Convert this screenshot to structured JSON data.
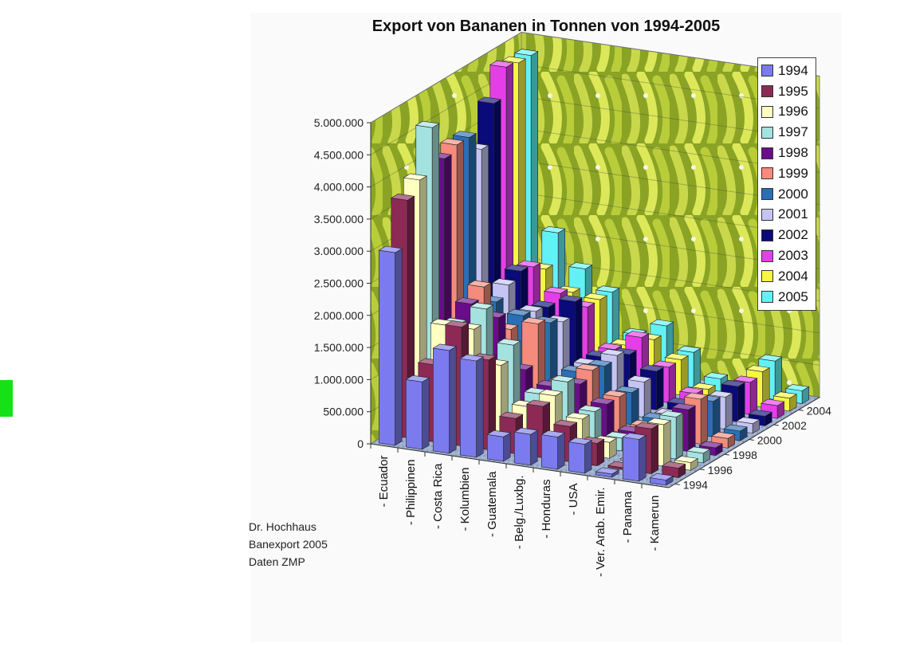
{
  "marker_color": "#16e016",
  "credits": [
    "Dr. Hochhaus",
    "Banexport 2005",
    "Daten ZMP"
  ],
  "chart_data": {
    "type": "bar",
    "title": "Export von Bananen in Tonnen von 1994-2005",
    "categories": [
      "- Ecuador",
      "- Philippinen",
      "- Costa Rica",
      "- Kolumbien",
      "- Guatemala",
      "- Belg./Luxbg.",
      "- Honduras",
      "- USA",
      "- Ver. Arab. Emir.",
      "- Panama",
      "- Kamerun"
    ],
    "z_ticks": [
      "1994",
      "1996",
      "1998",
      "2000",
      "2002",
      "2004"
    ],
    "y_ticks": [
      "0",
      "500.000",
      "1.000.000",
      "1.500.000",
      "2.000.000",
      "2.500.000",
      "3.000.000",
      "3.500.000",
      "4.000.000",
      "4.500.000",
      "5.000.000"
    ],
    "ylim": [
      0,
      5000000
    ],
    "legend_position": "right",
    "background": "banana photo",
    "series": [
      {
        "name": "1994",
        "color": "#7b7bef",
        "values": [
          3000000,
          1050000,
          1600000,
          1500000,
          380000,
          480000,
          500000,
          450000,
          50000,
          650000,
          80000
        ]
      },
      {
        "name": "1995",
        "color": "#8c2a55",
        "values": [
          3700000,
          1200000,
          1850000,
          1400000,
          550000,
          800000,
          550000,
          350000,
          30000,
          700000,
          150000
        ]
      },
      {
        "name": "1996",
        "color": "#ffffc0",
        "values": [
          3900000,
          1700000,
          1700000,
          1200000,
          620000,
          850000,
          550000,
          250000,
          20000,
          650000,
          120000
        ]
      },
      {
        "name": "1997",
        "color": "#a4e2e0",
        "values": [
          4600000,
          1600000,
          1900000,
          1400000,
          700000,
          950000,
          550000,
          200000,
          80000,
          650000,
          150000
        ]
      },
      {
        "name": "1998",
        "color": "#6a0d8a",
        "values": [
          4000000,
          1800000,
          1650000,
          900000,
          700000,
          800000,
          550000,
          180000,
          80000,
          650000,
          120000
        ]
      },
      {
        "name": "1999",
        "color": "#f48b7c",
        "values": [
          4100000,
          1950000,
          1350000,
          1500000,
          650000,
          900000,
          550000,
          150000,
          50000,
          700000,
          150000
        ]
      },
      {
        "name": "2000",
        "color": "#2a6fb6",
        "values": [
          4100000,
          1600000,
          1450000,
          1400000,
          700000,
          850000,
          500000,
          150000,
          60000,
          550000,
          150000
        ]
      },
      {
        "name": "2001",
        "color": "#c4c4f4",
        "values": [
          3800000,
          1750000,
          1400000,
          1300000,
          700000,
          900000,
          550000,
          100000,
          50000,
          500000,
          150000
        ]
      },
      {
        "name": "2002",
        "color": "#0a0a78",
        "values": [
          4400000,
          1850000,
          1350000,
          1500000,
          700000,
          800000,
          600000,
          150000,
          80000,
          550000,
          150000
        ]
      },
      {
        "name": "2003",
        "color": "#e53ee9",
        "values": [
          4850000,
          1800000,
          1450000,
          1300000,
          700000,
          950000,
          550000,
          200000,
          100000,
          500000,
          200000
        ]
      },
      {
        "name": "2004",
        "color": "#f7f742",
        "values": [
          4800000,
          1650000,
          1350000,
          1300000,
          650000,
          800000,
          550000,
          150000,
          100000,
          550000,
          200000
        ]
      },
      {
        "name": "2005",
        "color": "#62f2f6",
        "values": [
          4800000,
          2100000,
          1600000,
          1300000,
          700000,
          900000,
          550000,
          200000,
          120000,
          600000,
          200000
        ]
      }
    ]
  }
}
